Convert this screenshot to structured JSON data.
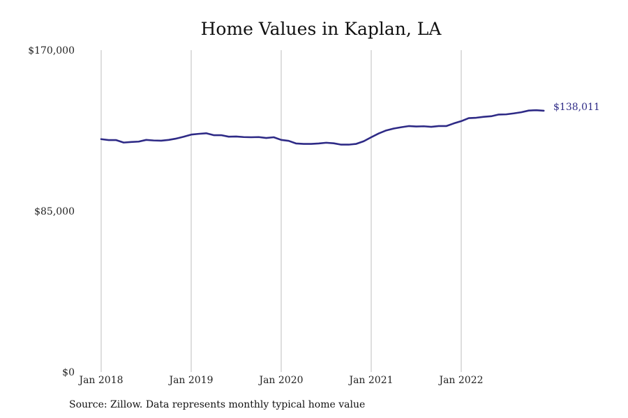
{
  "chart_data": {
    "type": "line",
    "title": "Home Values in Kaplan, LA",
    "source": "Source: Zillow. Data represents monthly typical home value",
    "ylim": [
      0,
      170000
    ],
    "y_ticks": [
      {
        "value": 0,
        "label": "$0"
      },
      {
        "value": 85000,
        "label": "$85,000"
      },
      {
        "value": 170000,
        "label": "$170,000"
      }
    ],
    "x_ticks": [
      {
        "index": 0,
        "label": "Jan 2018"
      },
      {
        "index": 12,
        "label": "Jan 2019"
      },
      {
        "index": 24,
        "label": "Jan 2020"
      },
      {
        "index": 36,
        "label": "Jan 2021"
      },
      {
        "index": 48,
        "label": "Jan 2022"
      }
    ],
    "x_grid": "vertical lines at each year tick",
    "last_value_label": "$138,011",
    "series": [
      {
        "values": [
          123000,
          122500,
          122500,
          121200,
          121500,
          121700,
          122600,
          122300,
          122200,
          122600,
          123300,
          124300,
          125400,
          125800,
          126100,
          125100,
          125100,
          124300,
          124400,
          124100,
          124000,
          124100,
          123600,
          124000,
          122600,
          122100,
          120700,
          120500,
          120500,
          120700,
          121100,
          120800,
          120100,
          120100,
          120500,
          121900,
          124000,
          126000,
          127600,
          128600,
          129300,
          129900,
          129700,
          129800,
          129500,
          129900,
          129900,
          131300,
          132500,
          134100,
          134300,
          134800,
          135100,
          136000,
          136100,
          136600,
          137200,
          138100,
          138300,
          138011
        ]
      }
    ],
    "colors": {
      "line": "#2e2a86",
      "grid": "#bdbdbd"
    }
  }
}
